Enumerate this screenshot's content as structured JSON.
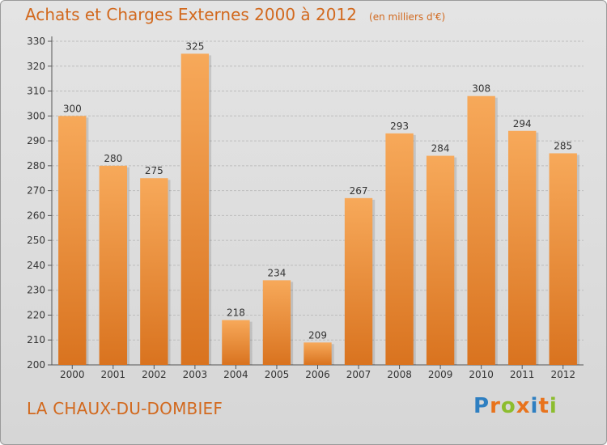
{
  "header": {
    "title": "Achats et Charges Externes 2000 à 2012",
    "unit": "(en milliers d'€)"
  },
  "footer": {
    "commune": "LA CHAUX-DU-DOMBIEF",
    "logo_text": "Proxiti",
    "logo_letters": [
      {
        "ch": "P",
        "color": "#2e7fc1"
      },
      {
        "ch": "r",
        "color": "#e8731c"
      },
      {
        "ch": "o",
        "color": "#8cbd2e"
      },
      {
        "ch": "x",
        "color": "#e8731c"
      },
      {
        "ch": "i",
        "color": "#2e7fc1"
      },
      {
        "ch": "t",
        "color": "#e8731c"
      },
      {
        "ch": "i",
        "color": "#8cbd2e"
      }
    ]
  },
  "colors": {
    "accent": "#d2691e",
    "bar_light": "#f7a95a",
    "bar_dark": "#d9731f",
    "grid": "#bdbdbd"
  },
  "chart_data": {
    "type": "bar",
    "title": "Achats et Charges Externes 2000 à 2012",
    "subtitle": "(en milliers d'€)",
    "categories": [
      "2000",
      "2001",
      "2002",
      "2003",
      "2004",
      "2005",
      "2006",
      "2007",
      "2008",
      "2009",
      "2010",
      "2011",
      "2012"
    ],
    "values": [
      300,
      280,
      275,
      325,
      218,
      234,
      209,
      267,
      293,
      284,
      308,
      294,
      285
    ],
    "ylim": [
      200,
      330
    ],
    "yticks": [
      200,
      210,
      220,
      230,
      240,
      250,
      260,
      270,
      280,
      290,
      300,
      310,
      320,
      330
    ],
    "grid": true,
    "data_labels": true
  }
}
